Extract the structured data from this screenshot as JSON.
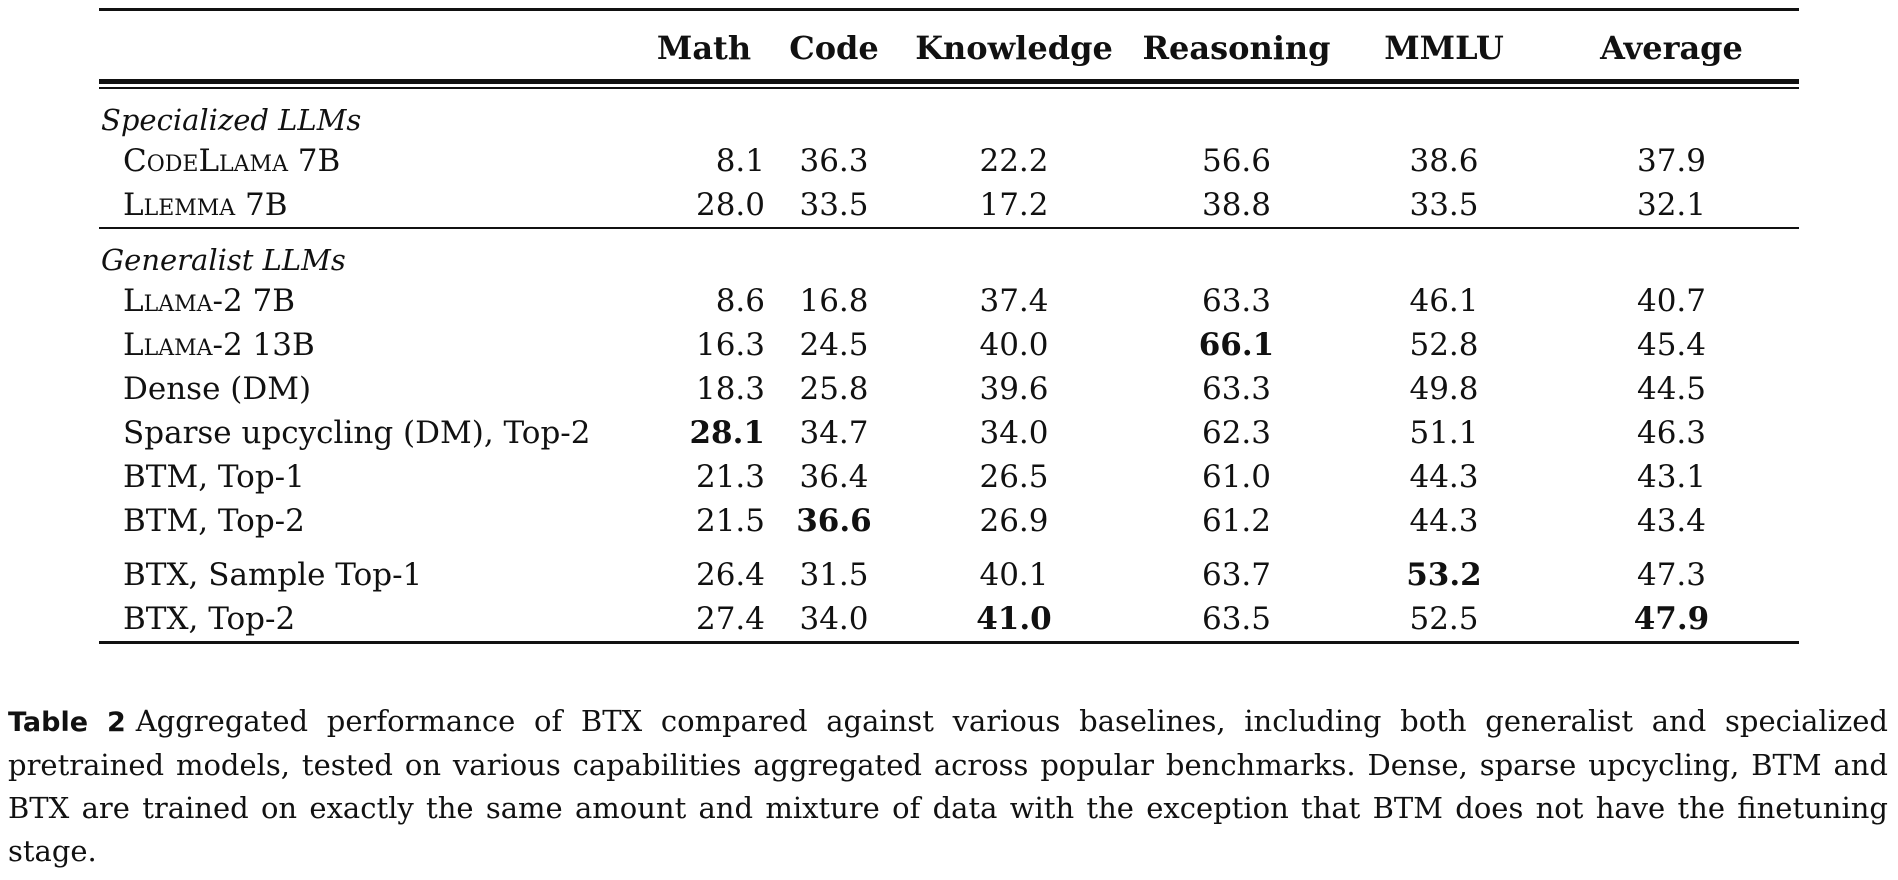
{
  "table": {
    "columns": [
      "",
      "Math",
      "Code",
      "Knowledge",
      "Reasoning",
      "MMLU",
      "Average"
    ],
    "groups": [
      {
        "label": "Specialized LLMs",
        "rows": [
          {
            "model": "CodeLlama 7B",
            "values": [
              "8.1",
              "36.3",
              "22.2",
              "56.6",
              "38.6",
              "37.9"
            ],
            "bold": []
          },
          {
            "model": "Llemma 7B",
            "values": [
              "28.0",
              "33.5",
              "17.2",
              "38.8",
              "33.5",
              "32.1"
            ],
            "bold": []
          }
        ]
      },
      {
        "label": "Generalist LLMs",
        "rows": [
          {
            "model": "Llama-2 7B",
            "values": [
              "8.6",
              "16.8",
              "37.4",
              "63.3",
              "46.1",
              "40.7"
            ],
            "bold": []
          },
          {
            "model": "Llama-2 13B",
            "values": [
              "16.3",
              "24.5",
              "40.0",
              "66.1",
              "52.8",
              "45.4"
            ],
            "bold": [
              3
            ]
          },
          {
            "model": "Dense (DM)",
            "values": [
              "18.3",
              "25.8",
              "39.6",
              "63.3",
              "49.8",
              "44.5"
            ],
            "bold": []
          },
          {
            "model": "Sparse upcycling (DM), Top-2",
            "values": [
              "28.1",
              "34.7",
              "34.0",
              "62.3",
              "51.1",
              "46.3"
            ],
            "bold": [
              0
            ]
          },
          {
            "model": "BTM, Top-1",
            "values": [
              "21.3",
              "36.4",
              "26.5",
              "61.0",
              "44.3",
              "43.1"
            ],
            "bold": []
          },
          {
            "model": "BTM, Top-2",
            "values": [
              "21.5",
              "36.6",
              "26.9",
              "61.2",
              "44.3",
              "43.4"
            ],
            "bold": [
              1
            ]
          },
          {
            "model": "BTX, Sample Top-1",
            "values": [
              "26.4",
              "31.5",
              "40.1",
              "63.7",
              "53.2",
              "47.3"
            ],
            "bold": [
              4
            ]
          },
          {
            "model": "BTX, Top-2",
            "values": [
              "27.4",
              "34.0",
              "41.0",
              "63.5",
              "52.5",
              "47.9"
            ],
            "bold": [
              2,
              5
            ]
          }
        ]
      }
    ]
  },
  "caption": {
    "label": "Table 2",
    "text": "Aggregated performance of BTX compared against various baselines, including both generalist and specialized pretrained models, tested on various capabilities aggregated across popular benchmarks. Dense, sparse upcycling, BTM and BTX are trained on exactly the same amount and mixture of data with the exception that BTM does not have the finetuning stage."
  }
}
